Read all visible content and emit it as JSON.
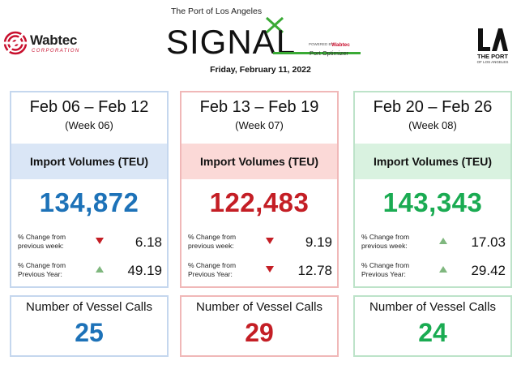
{
  "header": {
    "wabtec_logo": {
      "name": "Wabtec",
      "sub": "CORPORATION"
    },
    "signal": {
      "top_line": "The Port of Los Angeles",
      "title": "SIGNAL",
      "powered_by": "POWERED BY",
      "brand": "Wabtec",
      "product": "Port Optimizer"
    },
    "date": "Friday, February 11, 2022",
    "port_logo": {
      "mark": "LA",
      "line1": "THE PORT",
      "line2": "OF LOS ANGELES"
    }
  },
  "colors": {
    "blue": "#1d72b8",
    "red": "#c41e25",
    "green": "#1aab52",
    "arrow_down": "#c41e25",
    "arrow_up": "#7fb77e"
  },
  "weeks": [
    {
      "range": "Feb 06 – Feb 12",
      "week": "(Week 06)",
      "import_label": "Import Volumes (TEU)",
      "import_value": "134,872",
      "stats": [
        {
          "label": "% Change from previous week:",
          "direction": "down",
          "value": "6.18"
        },
        {
          "label": "% Change from Previous Year:",
          "direction": "up",
          "value": "49.19"
        }
      ],
      "vessel_label": "Number of Vessel Calls",
      "vessel_value": "25"
    },
    {
      "range": "Feb 13 – Feb 19",
      "week": "(Week 07)",
      "import_label": "Import Volumes (TEU)",
      "import_value": "122,483",
      "stats": [
        {
          "label": "% Change from previous week:",
          "direction": "down",
          "value": "9.19"
        },
        {
          "label": "% Change from Previous Year:",
          "direction": "down",
          "value": "12.78"
        }
      ],
      "vessel_label": "Number of Vessel Calls",
      "vessel_value": "29"
    },
    {
      "range": "Feb 20 – Feb 26",
      "week": "(Week 08)",
      "import_label": "Import Volumes (TEU)",
      "import_value": "143,343",
      "stats": [
        {
          "label": "% Change from previous week:",
          "direction": "up",
          "value": "17.03"
        },
        {
          "label": "% Change from Previous Year:",
          "direction": "up",
          "value": "29.42"
        }
      ],
      "vessel_label": "Number of Vessel Calls",
      "vessel_value": "24"
    }
  ]
}
